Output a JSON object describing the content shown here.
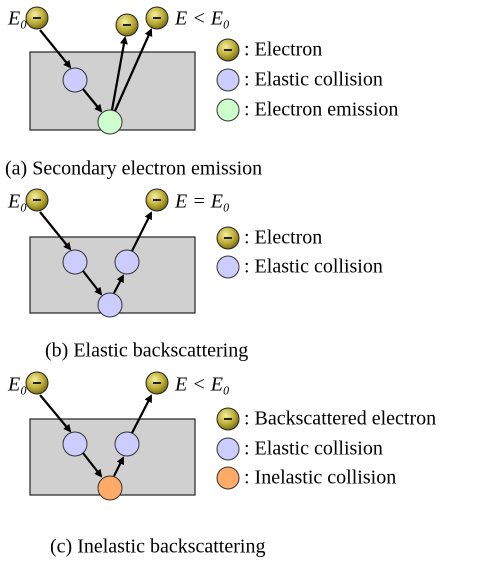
{
  "panels": [
    {
      "energy_in": "E₀",
      "energy_out": "E < E₀",
      "legend": [
        ": Electron",
        ": Elastic collision",
        ": Electron emission"
      ],
      "caption": "(a) Secondary electron emission"
    },
    {
      "energy_in": "E₀",
      "energy_out": "E = E₀",
      "legend": [
        ": Electron",
        ": Elastic collision"
      ],
      "caption": "(b) Elastic backscattering"
    },
    {
      "energy_in": "E₀",
      "energy_out": "E < E₀",
      "legend": [
        ": Backscattered electron",
        ": Elastic collision",
        ": Inelastic collision"
      ],
      "caption": "(c) Inelastic backscattering"
    }
  ]
}
